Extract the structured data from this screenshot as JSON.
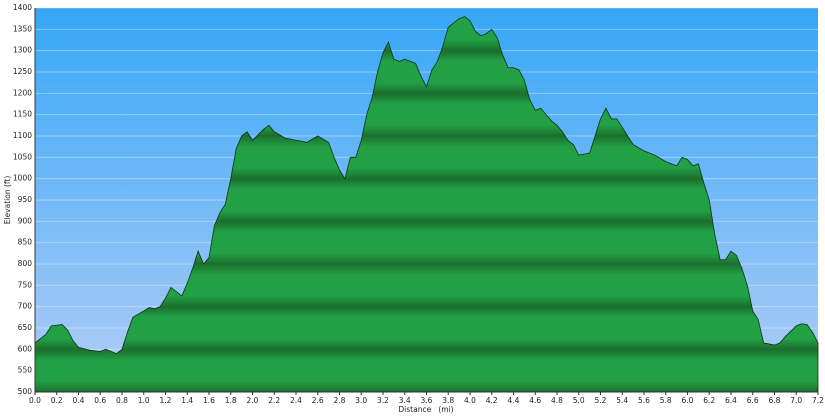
{
  "chart_data": {
    "type": "area",
    "x_label": "Distance   (mi)",
    "y_label": "Elevation (ft)",
    "x": [
      0.0,
      0.1,
      0.15,
      0.25,
      0.3,
      0.35,
      0.4,
      0.5,
      0.6,
      0.65,
      0.7,
      0.75,
      0.8,
      0.85,
      0.9,
      1.0,
      1.05,
      1.1,
      1.15,
      1.2,
      1.25,
      1.3,
      1.35,
      1.4,
      1.45,
      1.5,
      1.55,
      1.6,
      1.65,
      1.7,
      1.75,
      1.8,
      1.85,
      1.9,
      1.95,
      2.0,
      2.1,
      2.15,
      2.2,
      2.3,
      2.4,
      2.5,
      2.6,
      2.7,
      2.75,
      2.8,
      2.85,
      2.9,
      2.95,
      3.0,
      3.05,
      3.1,
      3.15,
      3.2,
      3.25,
      3.3,
      3.35,
      3.4,
      3.5,
      3.55,
      3.6,
      3.65,
      3.7,
      3.75,
      3.8,
      3.85,
      3.9,
      3.95,
      4.0,
      4.05,
      4.1,
      4.15,
      4.2,
      4.25,
      4.3,
      4.35,
      4.4,
      4.45,
      4.5,
      4.55,
      4.6,
      4.65,
      4.7,
      4.75,
      4.8,
      4.85,
      4.9,
      4.95,
      5.0,
      5.1,
      5.15,
      5.2,
      5.25,
      5.3,
      5.35,
      5.4,
      5.5,
      5.6,
      5.7,
      5.8,
      5.9,
      5.95,
      6.0,
      6.05,
      6.1,
      6.15,
      6.2,
      6.25,
      6.3,
      6.35,
      6.4,
      6.45,
      6.5,
      6.55,
      6.6,
      6.65,
      6.7,
      6.8,
      6.85,
      6.9,
      7.0,
      7.05,
      7.1,
      7.15,
      7.2
    ],
    "values": [
      615,
      635,
      655,
      658,
      645,
      620,
      605,
      598,
      595,
      600,
      595,
      590,
      600,
      640,
      675,
      690,
      698,
      695,
      700,
      720,
      745,
      735,
      725,
      755,
      790,
      830,
      800,
      815,
      890,
      920,
      940,
      1000,
      1070,
      1100,
      1110,
      1090,
      1115,
      1125,
      1110,
      1095,
      1090,
      1085,
      1100,
      1085,
      1050,
      1020,
      1000,
      1050,
      1050,
      1090,
      1150,
      1190,
      1250,
      1295,
      1320,
      1280,
      1275,
      1280,
      1270,
      1240,
      1215,
      1255,
      1275,
      1310,
      1355,
      1365,
      1375,
      1380,
      1370,
      1345,
      1335,
      1340,
      1350,
      1330,
      1290,
      1260,
      1260,
      1255,
      1230,
      1185,
      1160,
      1165,
      1150,
      1135,
      1125,
      1110,
      1090,
      1080,
      1055,
      1060,
      1100,
      1140,
      1165,
      1140,
      1140,
      1120,
      1080,
      1065,
      1055,
      1040,
      1030,
      1050,
      1045,
      1030,
      1035,
      990,
      950,
      870,
      810,
      810,
      830,
      820,
      790,
      750,
      690,
      670,
      615,
      610,
      615,
      630,
      655,
      660,
      658,
      640,
      615
    ],
    "color": "#22a046",
    "xlim": [
      0,
      7.2
    ],
    "ylim": [
      500,
      1400
    ],
    "xticks": [
      {
        "value": 0,
        "label": "0.0"
      },
      0.2,
      0.4,
      0.6,
      0.8,
      {
        "value": 1,
        "label": "1.0"
      },
      1.2,
      1.4,
      1.6,
      1.8,
      {
        "value": 2,
        "label": "2.0"
      },
      2.2,
      2.4,
      2.6,
      2.8,
      {
        "value": 3,
        "label": "3.0"
      },
      3.2,
      3.4,
      3.6,
      3.8,
      {
        "value": 4,
        "label": "4.0"
      },
      4.2,
      4.4,
      4.6,
      4.8,
      {
        "value": 5,
        "label": "5.0"
      },
      5.2,
      5.4,
      5.6,
      5.8,
      {
        "value": 6,
        "label": "6.0"
      },
      6.2,
      6.4,
      6.6,
      6.8,
      {
        "value": 7,
        "label": "7.0"
      },
      7.2
    ],
    "yticks": [
      500,
      550,
      600,
      650,
      700,
      750,
      800,
      850,
      900,
      950,
      1000,
      1050,
      1100,
      1150,
      1200,
      1250,
      1300,
      1350,
      1400
    ],
    "grid": true
  }
}
